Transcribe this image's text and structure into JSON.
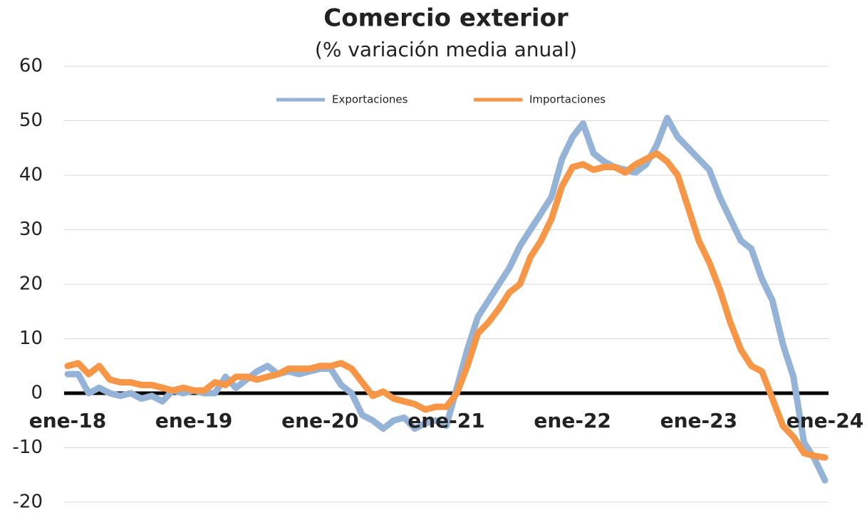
{
  "chart_data": {
    "type": "line",
    "title": "Comercio exterior",
    "subtitle": "(% variación media anual)",
    "categories": [
      "ene-18",
      null,
      null,
      null,
      null,
      null,
      null,
      null,
      null,
      null,
      null,
      null,
      "ene-19",
      null,
      null,
      null,
      null,
      null,
      null,
      null,
      null,
      null,
      null,
      null,
      "ene-20",
      null,
      null,
      null,
      null,
      null,
      null,
      null,
      null,
      null,
      null,
      null,
      "ene-21",
      null,
      null,
      null,
      null,
      null,
      null,
      null,
      null,
      null,
      null,
      null,
      "ene-22",
      null,
      null,
      null,
      null,
      null,
      null,
      null,
      null,
      null,
      null,
      null,
      "ene-23",
      null,
      null,
      null,
      null,
      null,
      null,
      null,
      null,
      null,
      null,
      null,
      "ene-24"
    ],
    "series": [
      {
        "name": "Exportaciones",
        "color": "#95b3d7",
        "values": [
          3.5,
          3.5,
          0,
          1,
          0,
          -0.5,
          0,
          -1,
          -0.5,
          -1.5,
          0.5,
          0,
          0.5,
          0,
          0,
          3,
          1,
          2.5,
          4,
          5,
          3.5,
          4,
          3.5,
          4,
          4.5,
          4.5,
          1.5,
          0,
          -4,
          -5,
          -6.5,
          -5,
          -4.5,
          -6.5,
          -5.5,
          -5,
          -6,
          1,
          8,
          14,
          17,
          20,
          23,
          27,
          30,
          33,
          36,
          43,
          47,
          49.5,
          44,
          42.5,
          41.5,
          41,
          40.5,
          42,
          45.5,
          50.5,
          47,
          45,
          43,
          41,
          36,
          32,
          28,
          26.5,
          21,
          17,
          9,
          3,
          -9,
          -12,
          -16
        ]
      },
      {
        "name": "Importaciones",
        "color": "#f79646",
        "values": [
          5,
          5.5,
          3.5,
          5,
          2.5,
          2,
          2,
          1.5,
          1.5,
          1,
          0.5,
          1,
          0.5,
          0.5,
          2,
          1.5,
          3,
          3,
          2.5,
          3,
          3.5,
          4.5,
          4.5,
          4.5,
          5,
          5,
          5.5,
          4.5,
          2,
          -0.5,
          0.3,
          -1,
          -1.5,
          -2,
          -3,
          -2.5,
          -2.5,
          0,
          5,
          11,
          13,
          15.5,
          18.5,
          20,
          25,
          28,
          32,
          38,
          41.5,
          42,
          41,
          41.5,
          41.5,
          40.5,
          42,
          43,
          44,
          42.5,
          40,
          34,
          28,
          24,
          19,
          13,
          8,
          5,
          4,
          -1,
          -6,
          -8,
          -11,
          -11.5,
          -11.8
        ]
      }
    ],
    "ylim": [
      -20,
      60
    ],
    "yticks": [
      -20,
      -10,
      0,
      10,
      20,
      30,
      40,
      50,
      60
    ],
    "grid": true,
    "legend": "top"
  }
}
